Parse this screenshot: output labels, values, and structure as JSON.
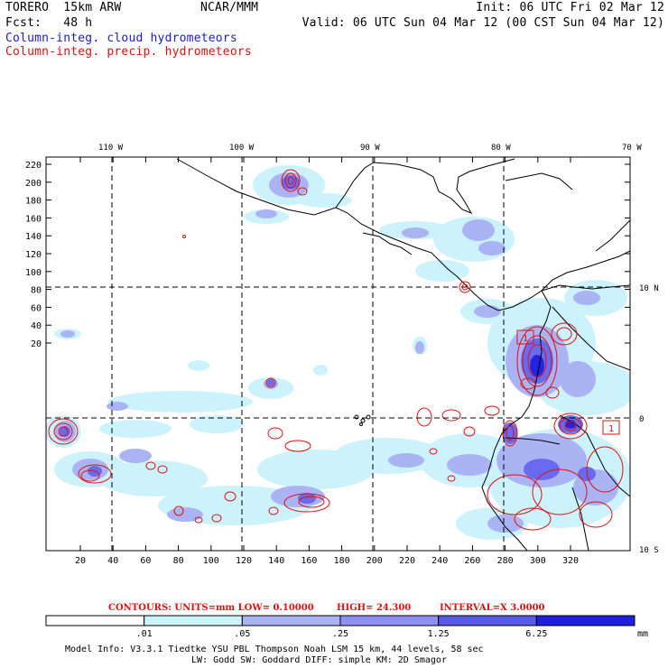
{
  "header": {
    "model": "TORERO  15km ARW",
    "org": "NCAR/MMM",
    "init": "Init: 06 UTC Fri 02 Mar 12",
    "fcst": "Fcst:   48 h",
    "valid": "Valid: 06 UTC Sun 04 Mar 12 (00 CST Sun 04 Mar 12)",
    "field1": "Column-integ. cloud hydrometeors",
    "field2": "Column-integ. precip. hydrometeors"
  },
  "map": {
    "lon_labels": [
      "110 W",
      "100 W",
      "90 W",
      "80 W",
      "70 W"
    ],
    "lat_labels": [
      "10 N",
      "0",
      "10 S"
    ],
    "y_ticks": [
      "220",
      "200",
      "180",
      "160",
      "140",
      "120",
      "100",
      "80",
      "60",
      "40",
      "20"
    ],
    "x_ticks": [
      "20",
      "40",
      "60",
      "80",
      "100",
      "120",
      "140",
      "160",
      "180",
      "200",
      "220",
      "240",
      "260",
      "280",
      "300",
      "320"
    ],
    "contour_box_labels": [
      "1",
      "1"
    ]
  },
  "contours_line": {
    "contours": "CONTOURS:  UNITS=mm  LOW= 0.10000",
    "high": "HIGH=  24.300",
    "interval": "INTERVAL=X  3.0000"
  },
  "colorbar": {
    "labels": [
      ".01",
      ".05",
      ".25",
      "1.25",
      "6.25"
    ],
    "unit": "mm",
    "colors": [
      "#ffffff",
      "#ccf2fc",
      "#aab4f4",
      "#8f8ff6",
      "#5a5ae8",
      "#1f1fe0"
    ]
  },
  "footer": {
    "line1": "Model Info: V3.3.1    Tiedtke YSU PBL  Thompson    Noah LSM  15 km,   44 levels,    58 sec",
    "line2": "LW: Godd SW: Goddard DIFF: simple KM: 2D Smagor"
  }
}
